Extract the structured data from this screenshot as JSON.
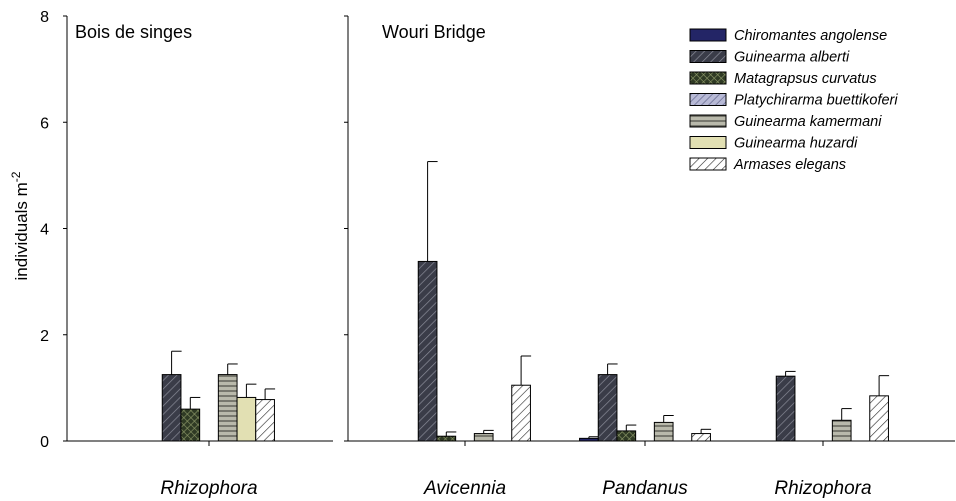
{
  "chart_data": [
    {
      "type": "bar",
      "title": "Bois de singes",
      "ylabel": "individuals  m⁻²",
      "ylabel_main": "individuals  m",
      "ylabel_sup": "-2",
      "ylim": [
        0,
        8
      ],
      "yticks": [
        "0",
        "2",
        "4",
        "6",
        "8"
      ],
      "grid": false,
      "categories": [
        "Rhizophora"
      ],
      "series": [
        {
          "name": "Chiromantes angolense",
          "values": [
            0
          ],
          "errors": [
            0
          ]
        },
        {
          "name": "Guinearma alberti",
          "values": [
            1.25
          ],
          "errors": [
            0.44
          ]
        },
        {
          "name": "Matagrapsus curvatus",
          "values": [
            0.6
          ],
          "errors": [
            0.22
          ]
        },
        {
          "name": "Platychirarma buettikoferi",
          "values": [
            0
          ],
          "errors": [
            0
          ]
        },
        {
          "name": "Guinearma kamermani",
          "values": [
            1.25
          ],
          "errors": [
            0.2
          ]
        },
        {
          "name": "Guinearma huzardi",
          "values": [
            0.82
          ],
          "errors": [
            0.25
          ]
        },
        {
          "name": "Armases elegans",
          "values": [
            0.78
          ],
          "errors": [
            0.2
          ]
        }
      ]
    },
    {
      "type": "bar",
      "title": "Wouri Bridge",
      "ylim": [
        0,
        8
      ],
      "grid": false,
      "legend_position": "top-right",
      "categories": [
        "Avicennia",
        "Pandanus",
        "Rhizophora"
      ],
      "series": [
        {
          "name": "Chiromantes angolense",
          "values": [
            0,
            0.05,
            0
          ],
          "errors": [
            0,
            0.03,
            0
          ]
        },
        {
          "name": "Guinearma alberti",
          "values": [
            3.38,
            1.25,
            1.22
          ],
          "errors": [
            1.88,
            0.2,
            0.09
          ]
        },
        {
          "name": "Matagrapsus curvatus",
          "values": [
            0.09,
            0.19,
            0
          ],
          "errors": [
            0.08,
            0.11,
            0
          ]
        },
        {
          "name": "Platychirarma buettikoferi",
          "values": [
            0,
            0,
            0
          ],
          "errors": [
            0,
            0,
            0
          ]
        },
        {
          "name": "Guinearma kamermani",
          "values": [
            0.14,
            0.35,
            0.39
          ],
          "errors": [
            0.06,
            0.13,
            0.22
          ]
        },
        {
          "name": "Guinearma huzardi",
          "values": [
            0,
            0,
            0
          ],
          "errors": [
            0,
            0,
            0
          ]
        },
        {
          "name": "Armases elegans",
          "values": [
            1.05,
            0.14,
            0.85
          ],
          "errors": [
            0.55,
            0.08,
            0.38
          ]
        }
      ]
    }
  ],
  "legend": [
    {
      "name": "Chiromantes angolense",
      "pattern": "solid-navy",
      "color": "#27285e"
    },
    {
      "name": "Guinearma alberti",
      "pattern": "diag-dark",
      "color": "#3b3d4a"
    },
    {
      "name": "Matagrapsus curvatus",
      "pattern": "crosshatch-olive",
      "color": "#4f5a3a"
    },
    {
      "name": "Platychirarma buettikoferi",
      "pattern": "diag-lavender",
      "color": "#8d90b8"
    },
    {
      "name": "Guinearma kamermani",
      "pattern": "horiz-gray",
      "color": "#a9a99a"
    },
    {
      "name": "Guinearma huzardi",
      "pattern": "solid-cream",
      "color": "#dedcad"
    },
    {
      "name": "Armases elegans",
      "pattern": "diag-white",
      "color": "#ffffff"
    }
  ]
}
